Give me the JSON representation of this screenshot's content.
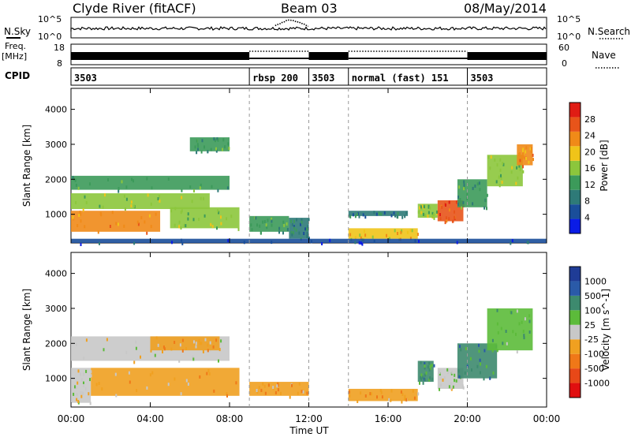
{
  "header": {
    "station": "Clyde River (fitACF)",
    "beam": "Beam 03",
    "date": "08/May/2014"
  },
  "strips": {
    "nsky_label": "N.Sky",
    "nsearch_label": "N.Search",
    "log_top": "10^5",
    "log_bottom": "10^0",
    "freq_label": "Freq.",
    "freq_units": "[MHz]",
    "freq_ticks": [
      "18",
      "8"
    ],
    "nave_label": "Nave",
    "nave_ticks": [
      "60",
      "0"
    ],
    "cpid_label": "CPID",
    "cpid_segments": [
      {
        "label": "3503",
        "start": 0,
        "end": 9
      },
      {
        "label": "rbsp 200",
        "start": 9,
        "end": 12
      },
      {
        "label": "3503",
        "start": 12,
        "end": 14
      },
      {
        "label": "normal (fast) 151",
        "start": 14,
        "end": 20
      },
      {
        "label": "3503",
        "start": 20,
        "end": 24
      }
    ]
  },
  "colors": {
    "power": [
      "#0a1ce6",
      "#1a4e9a",
      "#2e7a78",
      "#3c9a5a",
      "#8cc63c",
      "#f0c419",
      "#f08a18",
      "#e8541a",
      "#e01c14"
    ],
    "velocity": [
      "#1f3c96",
      "#2a5aa8",
      "#3d8a6e",
      "#5cbb3a",
      "#c8c8c8",
      "#f0a020",
      "#f07818",
      "#e84818",
      "#e00f10"
    ]
  },
  "chart_data": [
    {
      "type": "heatmap",
      "title": "Power",
      "ylabel": "Slant Range [km]",
      "xlabel": "Time UT",
      "xlim": [
        0,
        24
      ],
      "ylim": [
        180,
        4600
      ],
      "x_ticks": [
        "00:00",
        "04:00",
        "08:00",
        "12:00",
        "16:00",
        "20:00",
        "00:00"
      ],
      "y_ticks": [
        1000,
        2000,
        3000,
        4000
      ],
      "colorbar": {
        "label": "Power [dB]",
        "ticks": [
          "28",
          "24",
          "20",
          "16",
          "12",
          "8",
          "4"
        ],
        "range": [
          0,
          30
        ]
      },
      "regions": [
        {
          "t0": 0.0,
          "t1": 4.5,
          "r0": 500,
          "r1": 1100,
          "value": 24
        },
        {
          "t0": 0.0,
          "t1": 7.0,
          "r0": 1150,
          "r1": 1600,
          "value": 16
        },
        {
          "t0": 0.0,
          "t1": 8.0,
          "r0": 1700,
          "r1": 2100,
          "value": 12
        },
        {
          "t0": 5.0,
          "t1": 8.5,
          "r0": 600,
          "r1": 1200,
          "value": 14
        },
        {
          "t0": 6.0,
          "t1": 8.0,
          "r0": 2800,
          "r1": 3200,
          "value": 10
        },
        {
          "t0": 9.0,
          "t1": 11.0,
          "r0": 500,
          "r1": 950,
          "value": 10
        },
        {
          "t0": 11.0,
          "t1": 12.0,
          "r0": 300,
          "r1": 900,
          "value": 8
        },
        {
          "t0": 14.0,
          "t1": 17.5,
          "r0": 300,
          "r1": 600,
          "value": 20
        },
        {
          "t0": 14.0,
          "t1": 17.0,
          "r0": 950,
          "r1": 1100,
          "value": 6
        },
        {
          "t0": 17.5,
          "t1": 18.5,
          "r0": 900,
          "r1": 1300,
          "value": 14
        },
        {
          "t0": 18.5,
          "t1": 19.8,
          "r0": 800,
          "r1": 1400,
          "value": 26
        },
        {
          "t0": 19.5,
          "t1": 21.0,
          "r0": 1200,
          "r1": 2000,
          "value": 12
        },
        {
          "t0": 21.0,
          "t1": 22.8,
          "r0": 1800,
          "r1": 2700,
          "value": 14
        },
        {
          "t0": 22.5,
          "t1": 23.3,
          "r0": 2400,
          "r1": 3000,
          "value": 22
        },
        {
          "t0": 0.0,
          "t1": 24.0,
          "r0": 180,
          "r1": 300,
          "value": 4
        }
      ]
    },
    {
      "type": "heatmap",
      "title": "Velocity",
      "ylabel": "Slant Range [km]",
      "xlabel": "Time UT",
      "xlim": [
        0,
        24
      ],
      "ylim": [
        180,
        4600
      ],
      "x_ticks": [
        "00:00",
        "04:00",
        "08:00",
        "12:00",
        "16:00",
        "20:00",
        "00:00"
      ],
      "y_ticks": [
        1000,
        2000,
        3000,
        4000
      ],
      "colorbar": {
        "label": "Velocity [m s^-1]",
        "ticks": [
          "1000",
          "500",
          "100",
          "25",
          "-25",
          "-100",
          "-500",
          "-1000"
        ],
        "range": [
          -1000,
          1000
        ]
      },
      "regions": [
        {
          "t0": 1.0,
          "t1": 8.5,
          "r0": 500,
          "r1": 1300,
          "value": -300
        },
        {
          "t0": 0.0,
          "t1": 8.0,
          "r0": 1500,
          "r1": 2200,
          "value": 0
        },
        {
          "t0": 4.0,
          "t1": 7.5,
          "r0": 1800,
          "r1": 2200,
          "value": -150
        },
        {
          "t0": 9.0,
          "t1": 12.0,
          "r0": 500,
          "r1": 900,
          "value": -250
        },
        {
          "t0": 14.0,
          "t1": 17.5,
          "r0": 350,
          "r1": 700,
          "value": -200
        },
        {
          "t0": 17.5,
          "t1": 18.3,
          "r0": 900,
          "r1": 1500,
          "value": 600
        },
        {
          "t0": 18.5,
          "t1": 19.8,
          "r0": 700,
          "r1": 1300,
          "value": 0
        },
        {
          "t0": 19.5,
          "t1": 21.5,
          "r0": 1000,
          "r1": 2000,
          "value": 400
        },
        {
          "t0": 21.0,
          "t1": 23.3,
          "r0": 1800,
          "r1": 3000,
          "value": 200
        },
        {
          "t0": 0.0,
          "t1": 1.0,
          "r0": 300,
          "r1": 1300,
          "value": 0
        }
      ]
    }
  ]
}
